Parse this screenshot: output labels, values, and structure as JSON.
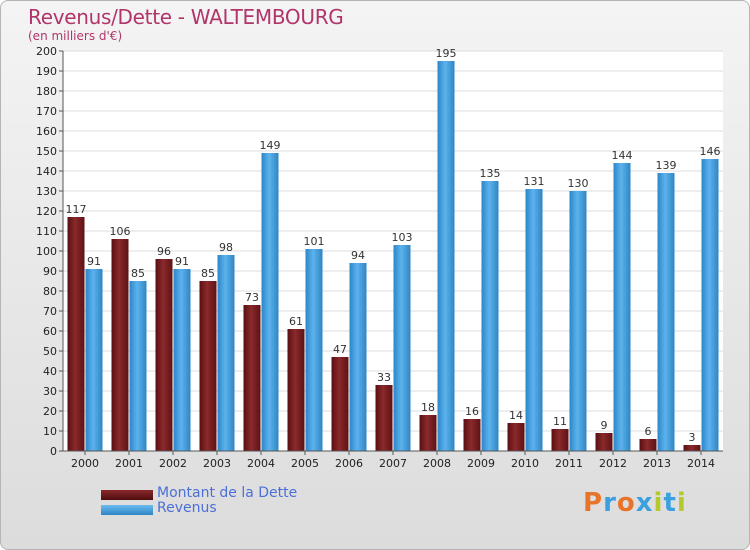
{
  "title": "Revenus/Dette - WALTEMBOURG",
  "subtitle": "(en milliers d'€)",
  "colors": {
    "debt": "#7a1f22",
    "revenue": "#4aa3e0",
    "title": "#b0356a",
    "legend": "#4a6fd8"
  },
  "legend": {
    "debt_label": "Montant de la Dette",
    "revenue_label": "Revenus"
  },
  "logo": {
    "text": "Proxiti"
  },
  "chart_data": {
    "type": "bar",
    "title": "Revenus/Dette - WALTEMBOURG",
    "ylabel": "(en milliers d'€)",
    "xlabel": "",
    "ylim": [
      0,
      200
    ],
    "ytick_step": 10,
    "categories": [
      "2000",
      "2001",
      "2002",
      "2003",
      "2004",
      "2005",
      "2006",
      "2007",
      "2008",
      "2009",
      "2010",
      "2011",
      "2012",
      "2013",
      "2014"
    ],
    "series": [
      {
        "name": "Montant de la Dette",
        "color": "#7a1f22",
        "values": [
          117,
          106,
          96,
          85,
          73,
          61,
          47,
          33,
          18,
          16,
          14,
          11,
          9,
          6,
          3
        ]
      },
      {
        "name": "Revenus",
        "color": "#4aa3e0",
        "values": [
          91,
          85,
          91,
          98,
          149,
          101,
          94,
          103,
          195,
          135,
          131,
          130,
          144,
          139,
          146
        ]
      }
    ],
    "legend": "bottom-left",
    "grid": true
  }
}
